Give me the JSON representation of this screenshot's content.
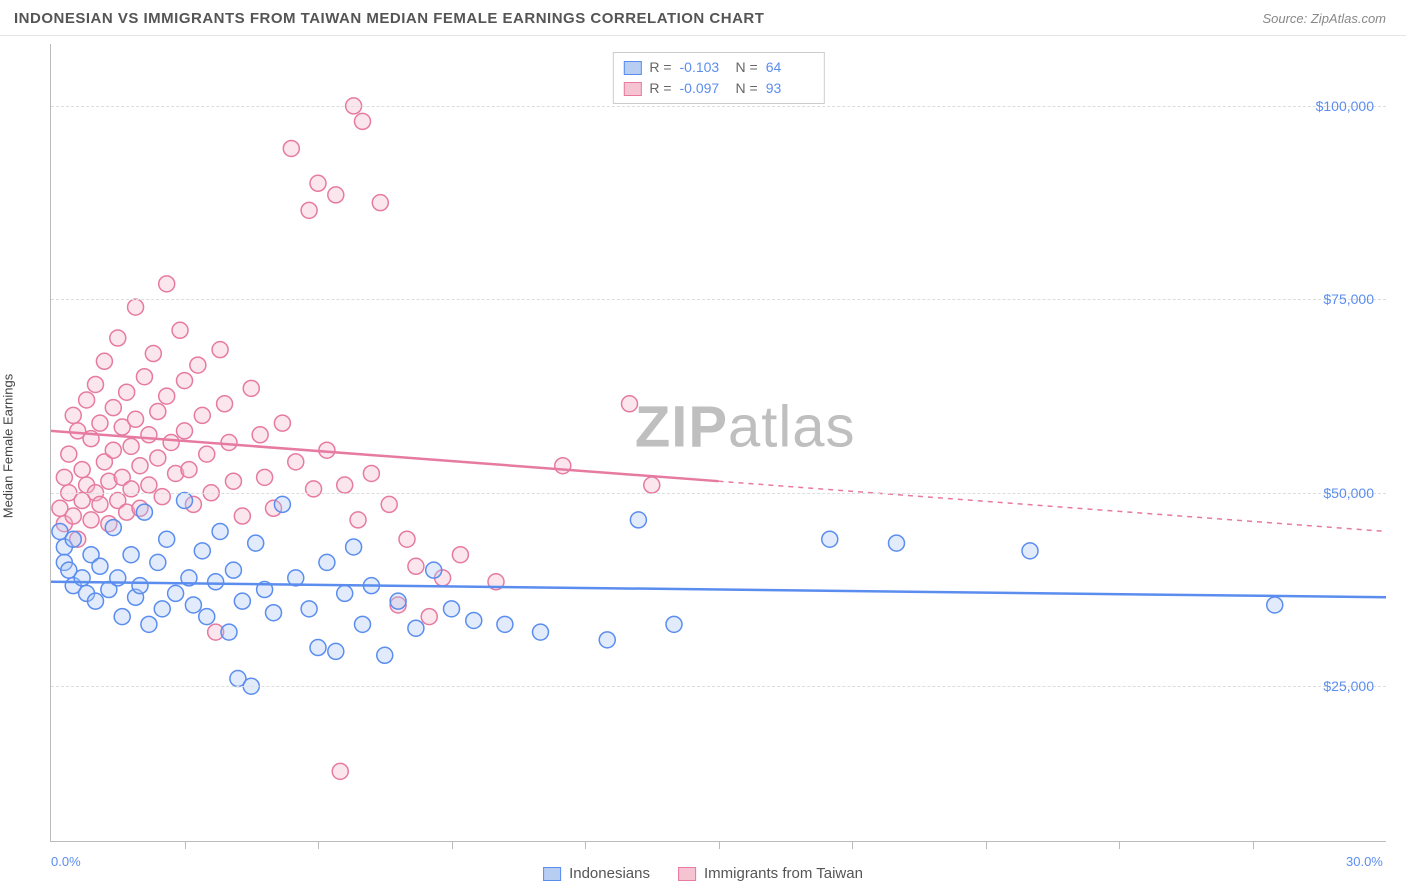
{
  "header": {
    "title": "INDONESIAN VS IMMIGRANTS FROM TAIWAN MEDIAN FEMALE EARNINGS CORRELATION CHART",
    "source": "Source: ZipAtlas.com"
  },
  "chart": {
    "type": "scatter",
    "y_axis_label": "Median Female Earnings",
    "watermark": {
      "bold": "ZIP",
      "rest": "atlas"
    },
    "xlim": [
      0,
      30
    ],
    "ylim": [
      5000,
      108000
    ],
    "x_ticks_minor": [
      3,
      6,
      9,
      12,
      15,
      18,
      21,
      24,
      27
    ],
    "x_end_labels": [
      {
        "value": 0,
        "text": "0.0%"
      },
      {
        "value": 30,
        "text": "30.0%"
      }
    ],
    "y_gridlines": [
      25000,
      50000,
      75000,
      100000
    ],
    "y_tick_labels": [
      {
        "value": 25000,
        "text": "$25,000"
      },
      {
        "value": 50000,
        "text": "$50,000"
      },
      {
        "value": 75000,
        "text": "$75,000"
      },
      {
        "value": 100000,
        "text": "$100,000"
      }
    ],
    "background_color": "#ffffff",
    "grid_color": "#dddddd",
    "marker_radius": 8,
    "marker_stroke_width": 1.5,
    "marker_fill_opacity": 0.35,
    "trend_line_width": 2.5
  },
  "series": [
    {
      "name": "Indonesians",
      "color_stroke": "#5b8def",
      "color_fill": "#a9c5f4",
      "swatch_fill": "#b7cef2",
      "swatch_border": "#5b8def",
      "r_value": "-0.103",
      "n_value": "64",
      "trend": {
        "x1": 0,
        "y1": 38500,
        "x2": 30,
        "y2": 36500,
        "solid_until_x": 30
      },
      "points": [
        [
          0.2,
          45000
        ],
        [
          0.3,
          43000
        ],
        [
          0.3,
          41000
        ],
        [
          0.4,
          40000
        ],
        [
          0.5,
          38000
        ],
        [
          0.5,
          44000
        ],
        [
          0.7,
          39000
        ],
        [
          0.8,
          37000
        ],
        [
          0.9,
          42000
        ],
        [
          1.0,
          36000
        ],
        [
          1.1,
          40500
        ],
        [
          1.3,
          37500
        ],
        [
          1.4,
          45500
        ],
        [
          1.5,
          39000
        ],
        [
          1.6,
          34000
        ],
        [
          1.8,
          42000
        ],
        [
          1.9,
          36500
        ],
        [
          2.0,
          38000
        ],
        [
          2.1,
          47500
        ],
        [
          2.2,
          33000
        ],
        [
          2.4,
          41000
        ],
        [
          2.5,
          35000
        ],
        [
          2.6,
          44000
        ],
        [
          2.8,
          37000
        ],
        [
          3.0,
          49000
        ],
        [
          3.1,
          39000
        ],
        [
          3.2,
          35500
        ],
        [
          3.4,
          42500
        ],
        [
          3.5,
          34000
        ],
        [
          3.7,
          38500
        ],
        [
          3.8,
          45000
        ],
        [
          4.0,
          32000
        ],
        [
          4.1,
          40000
        ],
        [
          4.2,
          26000
        ],
        [
          4.3,
          36000
        ],
        [
          4.5,
          25000
        ],
        [
          4.6,
          43500
        ],
        [
          4.8,
          37500
        ],
        [
          5.0,
          34500
        ],
        [
          5.2,
          48500
        ],
        [
          5.5,
          39000
        ],
        [
          5.8,
          35000
        ],
        [
          6.0,
          30000
        ],
        [
          6.2,
          41000
        ],
        [
          6.4,
          29500
        ],
        [
          6.6,
          37000
        ],
        [
          6.8,
          43000
        ],
        [
          7.0,
          33000
        ],
        [
          7.2,
          38000
        ],
        [
          7.5,
          29000
        ],
        [
          7.8,
          36000
        ],
        [
          8.2,
          32500
        ],
        [
          8.6,
          40000
        ],
        [
          9.0,
          35000
        ],
        [
          9.5,
          33500
        ],
        [
          10.2,
          33000
        ],
        [
          11.0,
          32000
        ],
        [
          12.5,
          31000
        ],
        [
          13.2,
          46500
        ],
        [
          14.0,
          33000
        ],
        [
          17.5,
          44000
        ],
        [
          19.0,
          43500
        ],
        [
          22.0,
          42500
        ],
        [
          27.5,
          35500
        ]
      ]
    },
    {
      "name": "Immigrants from Taiwan",
      "color_stroke": "#e67aa0",
      "color_fill": "#f4b6ca",
      "swatch_fill": "#f6c3d3",
      "swatch_border": "#e67aa0",
      "r_value": "-0.097",
      "n_value": "93",
      "trend": {
        "x1": 0,
        "y1": 58000,
        "x2": 30,
        "y2": 45000,
        "solid_until_x": 15
      },
      "points": [
        [
          0.2,
          48000
        ],
        [
          0.3,
          52000
        ],
        [
          0.3,
          46000
        ],
        [
          0.4,
          55000
        ],
        [
          0.4,
          50000
        ],
        [
          0.5,
          60000
        ],
        [
          0.5,
          47000
        ],
        [
          0.6,
          58000
        ],
        [
          0.6,
          44000
        ],
        [
          0.7,
          53000
        ],
        [
          0.7,
          49000
        ],
        [
          0.8,
          62000
        ],
        [
          0.8,
          51000
        ],
        [
          0.9,
          46500
        ],
        [
          0.9,
          57000
        ],
        [
          1.0,
          64000
        ],
        [
          1.0,
          50000
        ],
        [
          1.1,
          48500
        ],
        [
          1.1,
          59000
        ],
        [
          1.2,
          54000
        ],
        [
          1.2,
          67000
        ],
        [
          1.3,
          51500
        ],
        [
          1.3,
          46000
        ],
        [
          1.4,
          61000
        ],
        [
          1.4,
          55500
        ],
        [
          1.5,
          49000
        ],
        [
          1.5,
          70000
        ],
        [
          1.6,
          58500
        ],
        [
          1.6,
          52000
        ],
        [
          1.7,
          47500
        ],
        [
          1.7,
          63000
        ],
        [
          1.8,
          56000
        ],
        [
          1.8,
          50500
        ],
        [
          1.9,
          74000
        ],
        [
          1.9,
          59500
        ],
        [
          2.0,
          53500
        ],
        [
          2.0,
          48000
        ],
        [
          2.1,
          65000
        ],
        [
          2.2,
          57500
        ],
        [
          2.2,
          51000
        ],
        [
          2.3,
          68000
        ],
        [
          2.4,
          60500
        ],
        [
          2.4,
          54500
        ],
        [
          2.5,
          49500
        ],
        [
          2.6,
          77000
        ],
        [
          2.6,
          62500
        ],
        [
          2.7,
          56500
        ],
        [
          2.8,
          52500
        ],
        [
          2.9,
          71000
        ],
        [
          3.0,
          64500
        ],
        [
          3.0,
          58000
        ],
        [
          3.1,
          53000
        ],
        [
          3.2,
          48500
        ],
        [
          3.3,
          66500
        ],
        [
          3.4,
          60000
        ],
        [
          3.5,
          55000
        ],
        [
          3.6,
          50000
        ],
        [
          3.8,
          68500
        ],
        [
          3.9,
          61500
        ],
        [
          4.0,
          56500
        ],
        [
          4.1,
          51500
        ],
        [
          4.3,
          47000
        ],
        [
          4.5,
          63500
        ],
        [
          4.7,
          57500
        ],
        [
          4.8,
          52000
        ],
        [
          5.0,
          48000
        ],
        [
          5.2,
          59000
        ],
        [
          5.4,
          94500
        ],
        [
          5.5,
          54000
        ],
        [
          5.8,
          86500
        ],
        [
          5.9,
          50500
        ],
        [
          6.0,
          90000
        ],
        [
          6.2,
          55500
        ],
        [
          6.4,
          88500
        ],
        [
          6.6,
          51000
        ],
        [
          6.8,
          100000
        ],
        [
          6.9,
          46500
        ],
        [
          7.0,
          98000
        ],
        [
          7.2,
          52500
        ],
        [
          7.4,
          87500
        ],
        [
          7.6,
          48500
        ],
        [
          7.8,
          35500
        ],
        [
          8.0,
          44000
        ],
        [
          8.2,
          40500
        ],
        [
          8.5,
          34000
        ],
        [
          8.8,
          39000
        ],
        [
          9.2,
          42000
        ],
        [
          10.0,
          38500
        ],
        [
          11.5,
          53500
        ],
        [
          13.0,
          61500
        ],
        [
          13.5,
          51000
        ],
        [
          6.5,
          14000
        ],
        [
          3.7,
          32000
        ]
      ]
    }
  ],
  "bottom_legend": [
    {
      "swatch_fill": "#b7cef2",
      "swatch_border": "#5b8def",
      "label": "Indonesians"
    },
    {
      "swatch_fill": "#f6c3d3",
      "swatch_border": "#e67aa0",
      "label": "Immigrants from Taiwan"
    }
  ],
  "stats_legend_labels": {
    "r": "R =",
    "n": "N ="
  }
}
